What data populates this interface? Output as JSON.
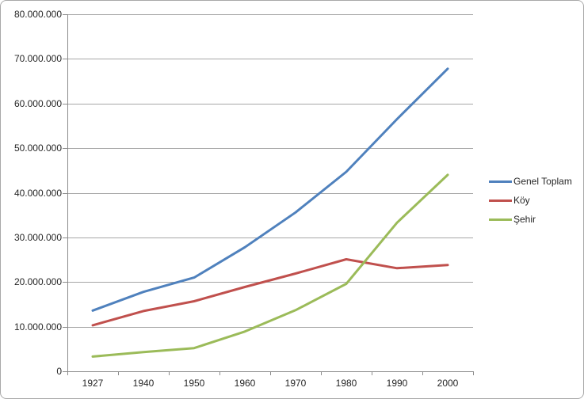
{
  "chart_data": {
    "type": "line",
    "title": "",
    "categories": [
      "1927",
      "1940",
      "1950",
      "1960",
      "1970",
      "1980",
      "1990",
      "2000"
    ],
    "series": [
      {
        "name": "Genel Toplam",
        "color": "#4F81BD",
        "values": [
          13600000,
          17800000,
          21000000,
          27800000,
          35600000,
          44700000,
          56500000,
          67800000
        ]
      },
      {
        "name": "Köy",
        "color": "#C0504D",
        "values": [
          10300000,
          13500000,
          15700000,
          18900000,
          21900000,
          25100000,
          23100000,
          23800000
        ]
      },
      {
        "name": "Şehir",
        "color": "#9BBB59",
        "values": [
          3300000,
          4300000,
          5200000,
          8900000,
          13700000,
          19600000,
          33300000,
          44000000
        ]
      }
    ],
    "y_axis": {
      "min": 0,
      "max": 80000000,
      "step": 10000000,
      "tick_labels": [
        "80.000.000",
        "70.000.000",
        "60.000.000",
        "50.000.000",
        "40.000.000",
        "30.000.000",
        "20.000.000",
        "10.000.000",
        "0"
      ]
    },
    "x_axis": {
      "tick_labels": [
        "1927",
        "1940",
        "1950",
        "1960",
        "1970",
        "1980",
        "1990",
        "2000"
      ]
    },
    "legend_position": "right",
    "grid": "horizontal"
  },
  "colors": {
    "background": "#FFFFFF",
    "border": "#A9A9A9",
    "gridline": "#A6A6A6",
    "axis": "#8C8C8C",
    "text": "#262626"
  }
}
